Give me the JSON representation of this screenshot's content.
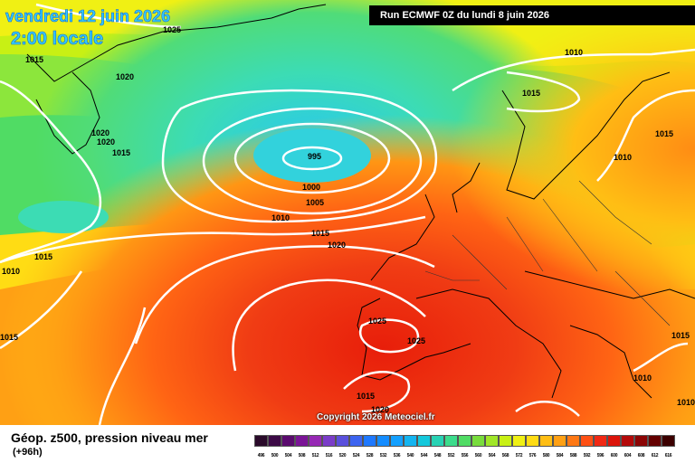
{
  "header": {
    "date_title": "vendredi 12 juin 2026",
    "time_title": "2:00 locale",
    "run_info": "Run ECMWF 0Z du lundi 8 juin 2026"
  },
  "copyright": "Copyright 2026 Meteociel.fr",
  "footer": {
    "title": "Géop. z500, pression niveau mer",
    "subtitle": "(+96h)"
  },
  "legend": {
    "labels": [
      "496",
      "500",
      "504",
      "508",
      "512",
      "516",
      "520",
      "524",
      "528",
      "532",
      "536",
      "540",
      "544",
      "548",
      "552",
      "556",
      "560",
      "564",
      "568",
      "572",
      "576",
      "580",
      "584",
      "588",
      "592",
      "596",
      "600",
      "604",
      "608",
      "612",
      "616"
    ],
    "colors": [
      "#2a0a2a",
      "#3c0a46",
      "#5a0a6e",
      "#7a1496",
      "#9628b4",
      "#7a3cc8",
      "#5a50dc",
      "#3c64f0",
      "#1e78ff",
      "#148cff",
      "#14a0ff",
      "#14b4f0",
      "#14c8dc",
      "#28d2b4",
      "#3cdc8c",
      "#50dc64",
      "#78dc3c",
      "#a0e628",
      "#c8f014",
      "#f0f014",
      "#ffdc14",
      "#ffbe14",
      "#ffa014",
      "#ff7814",
      "#ff5014",
      "#f02814",
      "#dc140a",
      "#b40a0a",
      "#8c0505",
      "#640000",
      "#3c0000"
    ]
  },
  "isobars": {
    "low_center": "995",
    "labels": [
      "1025",
      "1015",
      "1020",
      "1010",
      "1020",
      "1020",
      "1015",
      "1015",
      "995",
      "1000",
      "1005",
      "1010",
      "1015",
      "1020",
      "1015",
      "1010",
      "1010",
      "1015",
      "1015",
      "1025",
      "1025",
      "1015",
      "1020",
      "1015",
      "1010",
      "1010"
    ]
  }
}
